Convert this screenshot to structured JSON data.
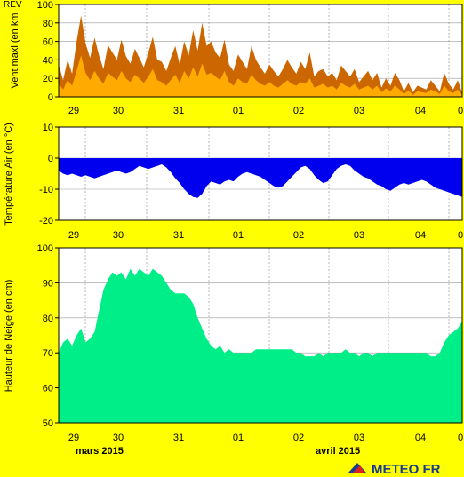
{
  "footer": {
    "months": [
      "mars 2015",
      "avril 2015"
    ],
    "logo_text": "METEO FR"
  },
  "chart_data": [
    {
      "type": "area",
      "ylabel": "Vent maxi (en km",
      "corner_label": "REV",
      "ylim": [
        0,
        100
      ],
      "yticks": [
        0,
        20,
        40,
        60,
        80,
        100
      ],
      "xticks": [
        "29",
        "30",
        "31",
        "01",
        "02",
        "03",
        "04",
        "0"
      ],
      "xlabels_top": true,
      "grid": true,
      "colors": {
        "series_max": "#cc6600",
        "series_mean": "#ffaa00"
      },
      "x": [
        0,
        1,
        2,
        3,
        4,
        5,
        6,
        7,
        8,
        9,
        10,
        11,
        12,
        13,
        14,
        15,
        16,
        17,
        18,
        19,
        20,
        21,
        22,
        23,
        24,
        25,
        26,
        27,
        28,
        29,
        30,
        31,
        32,
        33,
        34,
        35,
        36,
        37,
        38,
        39,
        40,
        41,
        42,
        43,
        44,
        45,
        46,
        47,
        48,
        49,
        50,
        51,
        52,
        53,
        54,
        55,
        56,
        57,
        58,
        59,
        60,
        61,
        62,
        63,
        64,
        65,
        66,
        67,
        68,
        69,
        70,
        71,
        72,
        73,
        74,
        75,
        76,
        77,
        78,
        79,
        80,
        81,
        82,
        83,
        84,
        85,
        86,
        87,
        88,
        89,
        90
      ],
      "series": [
        {
          "values": [
            35,
            18,
            40,
            25,
            60,
            88,
            58,
            42,
            64,
            45,
            30,
            56,
            48,
            40,
            62,
            44,
            36,
            52,
            42,
            32,
            48,
            65,
            40,
            38,
            28,
            42,
            55,
            35,
            60,
            45,
            72,
            50,
            80,
            55,
            60,
            48,
            42,
            62,
            35,
            28,
            46,
            38,
            30,
            55,
            40,
            32,
            25,
            35,
            28,
            22,
            30,
            40,
            32,
            25,
            38,
            30,
            48,
            22,
            28,
            30,
            22,
            26,
            18,
            34,
            28,
            22,
            30,
            16,
            22,
            28,
            18,
            26,
            10,
            20,
            12,
            26,
            18,
            6,
            15,
            5,
            12,
            10,
            8,
            18,
            12,
            6,
            26,
            14,
            8,
            18,
            4
          ]
        },
        {
          "values": [
            14,
            8,
            18,
            12,
            28,
            45,
            26,
            18,
            28,
            20,
            14,
            26,
            22,
            18,
            28,
            20,
            16,
            24,
            20,
            15,
            22,
            30,
            18,
            16,
            12,
            18,
            24,
            15,
            28,
            20,
            32,
            22,
            36,
            24,
            26,
            22,
            18,
            28,
            16,
            12,
            20,
            16,
            14,
            24,
            18,
            14,
            12,
            16,
            12,
            10,
            14,
            18,
            14,
            12,
            16,
            14,
            20,
            10,
            12,
            14,
            10,
            12,
            8,
            15,
            12,
            10,
            14,
            8,
            10,
            12,
            8,
            12,
            5,
            9,
            6,
            12,
            8,
            3,
            7,
            2,
            6,
            5,
            4,
            8,
            6,
            3,
            12,
            6,
            4,
            8,
            2
          ]
        }
      ]
    },
    {
      "type": "area",
      "ylabel": "Température Air (en °C)",
      "ylim": [
        -20,
        10
      ],
      "yticks": [
        -20,
        -10,
        0,
        10
      ],
      "xticks": [
        "29",
        "30",
        "31",
        "01",
        "02",
        "03",
        "04",
        "0"
      ],
      "xlabels_top": true,
      "grid": true,
      "colors": {
        "series": "#0000ee"
      },
      "x": [
        0,
        1,
        2,
        3,
        4,
        5,
        6,
        7,
        8,
        9,
        10,
        11,
        12,
        13,
        14,
        15,
        16,
        17,
        18,
        19,
        20,
        21,
        22,
        23,
        24,
        25,
        26,
        27,
        28,
        29,
        30,
        31,
        32,
        33,
        34,
        35,
        36,
        37,
        38,
        39,
        40,
        41,
        42,
        43,
        44,
        45,
        46,
        47,
        48,
        49,
        50,
        51,
        52,
        53,
        54,
        55,
        56,
        57,
        58,
        59,
        60,
        61,
        62,
        63,
        64,
        65,
        66,
        67,
        68,
        69,
        70,
        71,
        72,
        73,
        74,
        75,
        76,
        77,
        78,
        79,
        80,
        81,
        82,
        83,
        84,
        85,
        86,
        87,
        88,
        89,
        90
      ],
      "series": [
        {
          "values": [
            -4,
            -5,
            -5.5,
            -5,
            -5.5,
            -6,
            -5.5,
            -6,
            -6.5,
            -6,
            -5.5,
            -5,
            -4.5,
            -4,
            -4.5,
            -5,
            -4.5,
            -3.5,
            -2.5,
            -3,
            -3.5,
            -3,
            -2.5,
            -2,
            -3,
            -4.5,
            -6.5,
            -8,
            -10,
            -11.5,
            -12.5,
            -12.8,
            -11.5,
            -9,
            -7.5,
            -8,
            -8.5,
            -7.5,
            -7,
            -7.5,
            -6,
            -5,
            -4.5,
            -5,
            -5.5,
            -6,
            -7,
            -8,
            -9,
            -9.5,
            -9,
            -7.5,
            -6,
            -4.5,
            -3,
            -2.5,
            -3.5,
            -5.5,
            -7,
            -8,
            -7.5,
            -5.5,
            -3.5,
            -2.5,
            -2,
            -2.5,
            -4,
            -5,
            -6,
            -6.5,
            -7.5,
            -8.5,
            -9,
            -10,
            -10.5,
            -9.5,
            -8.5,
            -8,
            -8.5,
            -8,
            -7.5,
            -7,
            -7.5,
            -8.5,
            -9.5,
            -10,
            -10.5,
            -11,
            -11.5,
            -12,
            -12.5
          ]
        }
      ]
    },
    {
      "type": "area",
      "ylabel": "Hauteur de Neige (en cm)",
      "ylim": [
        50,
        100
      ],
      "yticks": [
        50,
        60,
        70,
        80,
        90,
        100
      ],
      "xticks": [
        "29",
        "30",
        "31",
        "01",
        "02",
        "03",
        "04",
        "0"
      ],
      "grid": true,
      "colors": {
        "series": "#00ee88"
      },
      "x": [
        0,
        1,
        2,
        3,
        4,
        5,
        6,
        7,
        8,
        9,
        10,
        11,
        12,
        13,
        14,
        15,
        16,
        17,
        18,
        19,
        20,
        21,
        22,
        23,
        24,
        25,
        26,
        27,
        28,
        29,
        30,
        31,
        32,
        33,
        34,
        35,
        36,
        37,
        38,
        39,
        40,
        41,
        42,
        43,
        44,
        45,
        46,
        47,
        48,
        49,
        50,
        51,
        52,
        53,
        54,
        55,
        56,
        57,
        58,
        59,
        60,
        61,
        62,
        63,
        64,
        65,
        66,
        67,
        68,
        69,
        70,
        71,
        72,
        73,
        74,
        75,
        76,
        77,
        78,
        79,
        80,
        81,
        82,
        83,
        84,
        85,
        86,
        87,
        88,
        89,
        90
      ],
      "series": [
        {
          "values": [
            70,
            73,
            74,
            72,
            75,
            77,
            73,
            74,
            76,
            82,
            88,
            91,
            93,
            92,
            93,
            91,
            94,
            92,
            94,
            93,
            92,
            94,
            93,
            92,
            90,
            88,
            87,
            87,
            87,
            86,
            84,
            80,
            77,
            74,
            72,
            71,
            72,
            70,
            71,
            70,
            70,
            70,
            70,
            70,
            71,
            71,
            71,
            71,
            71,
            71,
            71,
            71,
            71,
            70,
            70,
            69,
            69,
            69,
            70,
            69,
            70,
            70,
            70,
            70,
            71,
            70,
            70,
            69,
            70,
            70,
            69,
            70,
            70,
            70,
            70,
            70,
            70,
            70,
            70,
            70,
            70,
            70,
            70,
            69,
            69,
            70,
            73,
            75,
            76,
            77,
            79
          ]
        }
      ]
    }
  ]
}
